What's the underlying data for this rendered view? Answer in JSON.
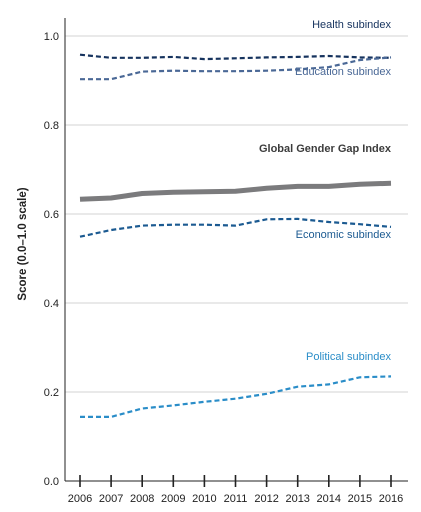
{
  "chart_data": {
    "type": "line",
    "title": "",
    "xlabel": "",
    "ylabel": "Score (0.0–1.0 scale)",
    "x": [
      "2006",
      "2007",
      "2008",
      "2009",
      "2010",
      "2011",
      "2012",
      "2013",
      "2014",
      "2015",
      "2016"
    ],
    "ylim": [
      0,
      1.0
    ],
    "yticks": [
      "0.0",
      "0.2",
      "0.4",
      "0.6",
      "0.8",
      "1.0"
    ],
    "grid": "horizontal",
    "legend": "inline labels",
    "series": [
      {
        "name": "Health subindex",
        "color": "#16335e",
        "style": "dashed",
        "values": [
          0.958,
          0.951,
          0.951,
          0.953,
          0.948,
          0.95,
          0.952,
          0.953,
          0.955,
          0.952,
          0.951
        ]
      },
      {
        "name": "Education subindex",
        "color": "#4a6896",
        "style": "dashed",
        "values": [
          0.903,
          0.903,
          0.92,
          0.922,
          0.921,
          0.921,
          0.922,
          0.925,
          0.93,
          0.946,
          0.952
        ]
      },
      {
        "name": "Global Gender Gap Index",
        "color": "#7b7b7d",
        "style": "solid",
        "values": [
          0.633,
          0.636,
          0.646,
          0.649,
          0.65,
          0.651,
          0.658,
          0.662,
          0.662,
          0.667,
          0.669
        ]
      },
      {
        "name": "Economic subindex",
        "color": "#1b5a91",
        "style": "dashed",
        "values": [
          0.549,
          0.564,
          0.574,
          0.576,
          0.576,
          0.574,
          0.588,
          0.589,
          0.582,
          0.577,
          0.571
        ]
      },
      {
        "name": "Political subindex",
        "color": "#2a8dc8",
        "style": "dashed",
        "values": [
          0.144,
          0.144,
          0.163,
          0.17,
          0.178,
          0.185,
          0.196,
          0.212,
          0.217,
          0.233,
          0.235
        ]
      }
    ]
  }
}
